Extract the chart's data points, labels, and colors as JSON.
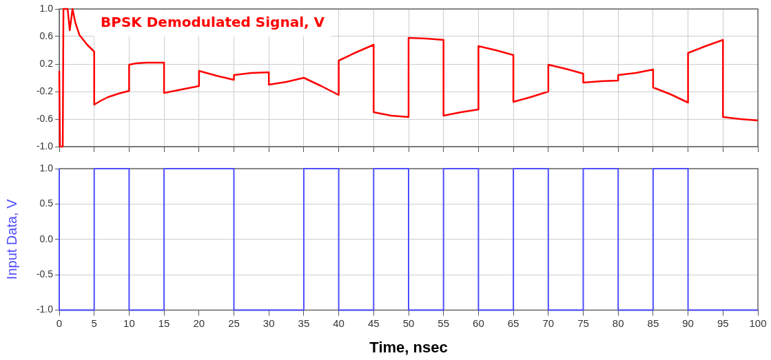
{
  "chart_data": [
    {
      "type": "line",
      "title": "BPSK Demodulated Signal, V",
      "color": "#ff0000",
      "marker": "none",
      "grid": true,
      "tick_labels": "y",
      "x": [
        0,
        0.1,
        0.5,
        0.6,
        1.2,
        1.5,
        1.9,
        2.3,
        2.9,
        4,
        5,
        5,
        6,
        7,
        8.5,
        10,
        10,
        11,
        12.5,
        15,
        15,
        17.5,
        20,
        20,
        22.5,
        25,
        25,
        27.5,
        30,
        30,
        32.5,
        35,
        37.5,
        40,
        40,
        42.5,
        45,
        45,
        47.5,
        50,
        50,
        52.5,
        55,
        55,
        57.5,
        60,
        60,
        62.5,
        65,
        65,
        67.5,
        70,
        70,
        72.5,
        75,
        75,
        77.5,
        80,
        80,
        82.5,
        85,
        85,
        87.5,
        90,
        90,
        92.5,
        95,
        95,
        97.5,
        100
      ],
      "values": [
        0.1,
        -1.0,
        -1.0,
        1.0,
        1.0,
        0.69,
        1.0,
        0.8,
        0.62,
        0.48,
        0.38,
        -0.39,
        -0.33,
        -0.28,
        -0.23,
        -0.19,
        0.19,
        0.21,
        0.22,
        0.22,
        -0.22,
        -0.17,
        -0.12,
        0.1,
        0.03,
        -0.03,
        0.04,
        0.07,
        0.08,
        -0.1,
        -0.06,
        0.0,
        -0.12,
        -0.25,
        0.25,
        0.37,
        0.48,
        -0.5,
        -0.55,
        -0.57,
        0.58,
        0.57,
        0.55,
        -0.55,
        -0.5,
        -0.46,
        0.46,
        0.4,
        0.33,
        -0.35,
        -0.28,
        -0.2,
        0.19,
        0.13,
        0.06,
        -0.07,
        -0.05,
        -0.04,
        0.04,
        0.07,
        0.12,
        -0.14,
        -0.24,
        -0.36,
        0.36,
        0.46,
        0.55,
        -0.57,
        -0.6,
        -0.62
      ],
      "xlim": [
        0,
        100
      ],
      "xticks": [
        0,
        5,
        10,
        15,
        20,
        25,
        30,
        35,
        40,
        45,
        50,
        55,
        60,
        65,
        70,
        75,
        80,
        85,
        90,
        95,
        100
      ],
      "ylim": [
        -1,
        1
      ],
      "yticks": [
        {
          "value": -1,
          "label": "-1.0"
        },
        {
          "value": -0.6,
          "label": "-0.6"
        },
        {
          "value": -0.2,
          "label": "-0.2"
        },
        {
          "value": 0.2,
          "label": "0.2"
        },
        {
          "value": 0.6,
          "label": "0.6"
        },
        {
          "value": 1,
          "label": "1.0"
        }
      ]
    },
    {
      "type": "step",
      "ylabel": "Input Data, V",
      "xlabel": "Time, nsec",
      "color": "#4d4dff",
      "marker": "none",
      "grid": "y",
      "x": [
        0,
        5,
        10,
        15,
        20,
        25,
        30,
        35,
        40,
        45,
        50,
        55,
        60,
        65,
        70,
        75,
        80,
        85,
        90,
        95,
        100
      ],
      "values": [
        1,
        -1,
        1,
        -1,
        1,
        1,
        -1,
        -1,
        1,
        -1,
        1,
        -1,
        1,
        -1,
        1,
        -1,
        1,
        -1,
        1,
        -1,
        -1
      ],
      "xlim": [
        0,
        100
      ],
      "xticks": [
        0,
        5,
        10,
        15,
        20,
        25,
        30,
        35,
        40,
        45,
        50,
        55,
        60,
        65,
        70,
        75,
        80,
        85,
        90,
        95,
        100
      ],
      "ylim": [
        -1,
        1
      ],
      "yticks": [
        {
          "value": -1,
          "label": "-1.0"
        },
        {
          "value": -0.5,
          "label": "-0.5"
        },
        {
          "value": 0,
          "label": "0.0"
        },
        {
          "value": 0.5,
          "label": "0.5"
        },
        {
          "value": 1,
          "label": "1.0"
        }
      ]
    }
  ]
}
